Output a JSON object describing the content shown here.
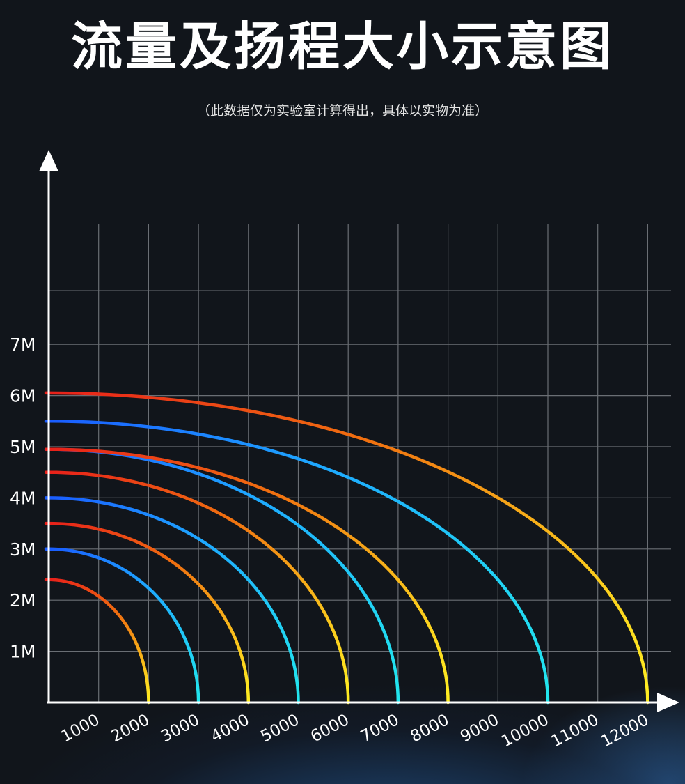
{
  "header": {
    "title": "流量及扬程大小示意图",
    "subtitle": "（此数据仅为实验室计算得出，具体以实物为准）"
  },
  "chart_data": {
    "type": "line",
    "title": "流量及扬程大小示意图",
    "subtitle": "（此数据仅为实验室计算得出，具体以实物为准）",
    "xlabel": "",
    "ylabel": "",
    "x_ticks": [
      "1000",
      "2000",
      "3000",
      "4000",
      "5000",
      "6000",
      "7000",
      "8000",
      "9000",
      "10000",
      "11000",
      "12000"
    ],
    "y_ticks": [
      "1M",
      "2M",
      "3M",
      "4M",
      "5M",
      "6M",
      "7M"
    ],
    "xlim": [
      0,
      12500
    ],
    "ylim": [
      0,
      9
    ],
    "grid": true,
    "gradient_colors": {
      "red": [
        "#e8201a",
        "#f07010",
        "#ffee22"
      ],
      "blue": [
        "#1a5cff",
        "#1ea8ff",
        "#22e6ee"
      ]
    },
    "series": [
      {
        "max_head": 2.4,
        "max_flow": 2000,
        "color_scheme": "red"
      },
      {
        "max_head": 3.0,
        "max_flow": 3000,
        "color_scheme": "blue"
      },
      {
        "max_head": 3.5,
        "max_flow": 4000,
        "color_scheme": "red"
      },
      {
        "max_head": 4.0,
        "max_flow": 5000,
        "color_scheme": "blue"
      },
      {
        "max_head": 4.5,
        "max_flow": 6000,
        "color_scheme": "red"
      },
      {
        "max_head": 4.95,
        "max_flow": 7000,
        "color_scheme": "blue"
      },
      {
        "max_head": 4.95,
        "max_flow": 8000,
        "color_scheme": "red"
      },
      {
        "max_head": 5.5,
        "max_flow": 10000,
        "color_scheme": "blue"
      },
      {
        "max_head": 6.05,
        "max_flow": 12000,
        "color_scheme": "red"
      }
    ]
  }
}
